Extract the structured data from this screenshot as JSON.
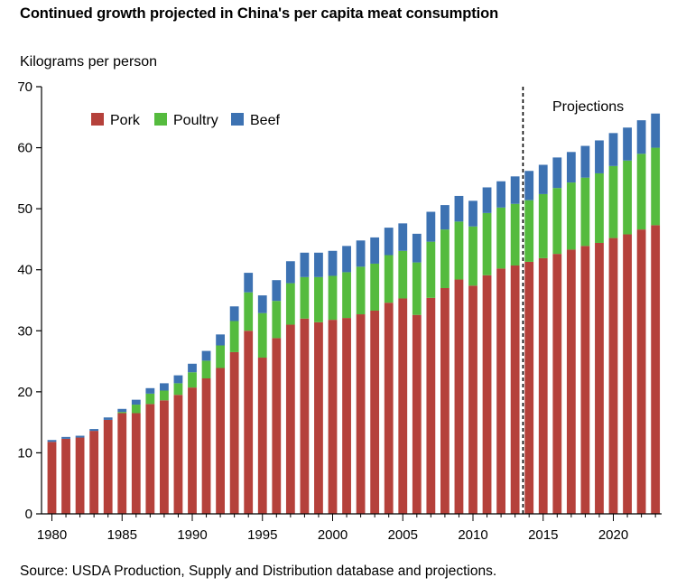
{
  "title": "Continued growth projected in China's per capita meat consumption",
  "source": "Source: USDA Production, Supply and Distribution database and projections.",
  "chart_data": {
    "type": "bar",
    "stacked": true,
    "title": "Continued growth projected in China's per capita meat consumption",
    "xlabel": "",
    "ylabel": "Kilograms per person",
    "ylim": [
      0,
      70
    ],
    "yticks": [
      0,
      10,
      20,
      30,
      40,
      50,
      60,
      70
    ],
    "xticks": [
      1980,
      1985,
      1990,
      1995,
      2000,
      2005,
      2010,
      2015,
      2020
    ],
    "legend_position": "top-left",
    "grid": false,
    "annotation": "Projections",
    "projection_start": 2014,
    "categories": [
      1980,
      1981,
      1982,
      1983,
      1984,
      1985,
      1986,
      1987,
      1988,
      1989,
      1990,
      1991,
      1992,
      1993,
      1994,
      1995,
      1996,
      1997,
      1998,
      1999,
      2000,
      2001,
      2002,
      2003,
      2004,
      2005,
      2006,
      2007,
      2008,
      2009,
      2010,
      2011,
      2012,
      2013,
      2014,
      2015,
      2016,
      2017,
      2018,
      2019,
      2020,
      2021,
      2022,
      2023
    ],
    "series": [
      {
        "name": "Pork",
        "color": "#b5413b",
        "values": [
          11.8,
          12.3,
          12.5,
          13.6,
          15.4,
          16.5,
          16.5,
          18.0,
          18.6,
          19.5,
          20.7,
          22.2,
          23.9,
          26.5,
          30.0,
          25.6,
          28.8,
          31.0,
          32.0,
          31.4,
          31.8,
          32.1,
          32.7,
          33.3,
          34.6,
          35.3,
          32.6,
          35.4,
          37.0,
          38.4,
          37.4,
          39.1,
          40.2,
          40.7,
          41.3,
          41.9,
          42.6,
          43.3,
          43.9,
          44.4,
          45.2,
          45.8,
          46.6,
          47.3
        ]
      },
      {
        "name": "Poultry",
        "color": "#55bb3e",
        "values": [
          0.0,
          0.0,
          0.0,
          0.0,
          0.0,
          0.2,
          1.4,
          1.7,
          1.6,
          1.9,
          2.5,
          2.9,
          3.7,
          5.1,
          6.3,
          7.3,
          6.1,
          6.8,
          6.8,
          7.4,
          7.2,
          7.5,
          7.8,
          7.7,
          7.8,
          7.8,
          8.6,
          9.2,
          9.6,
          9.5,
          9.7,
          10.2,
          10.0,
          10.1,
          10.1,
          10.5,
          10.8,
          11.0,
          11.2,
          11.4,
          11.8,
          12.1,
          12.4,
          12.7
        ]
      },
      {
        "name": "Beef",
        "color": "#3d72b2",
        "values": [
          0.3,
          0.3,
          0.3,
          0.3,
          0.4,
          0.5,
          0.8,
          0.9,
          1.2,
          1.3,
          1.4,
          1.6,
          1.8,
          2.4,
          3.2,
          2.9,
          3.4,
          3.6,
          4.0,
          4.0,
          4.1,
          4.3,
          4.3,
          4.3,
          4.5,
          4.5,
          4.7,
          4.9,
          4.0,
          4.2,
          4.2,
          4.2,
          4.3,
          4.5,
          4.8,
          4.8,
          5.0,
          5.0,
          5.2,
          5.4,
          5.4,
          5.4,
          5.5,
          5.6
        ]
      }
    ]
  }
}
